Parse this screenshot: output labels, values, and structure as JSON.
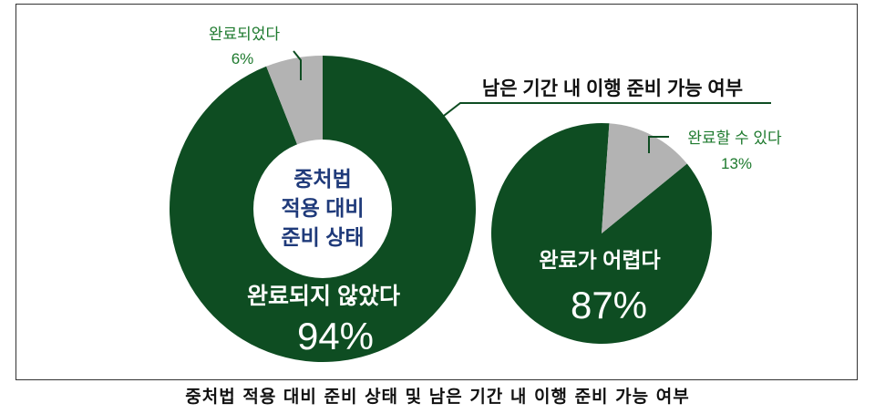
{
  "chart_data": [
    {
      "type": "donut",
      "title": "중처법 적용 대비 준비 상태",
      "series": [
        {
          "label": "완료되지 않았다",
          "value": 94,
          "value_label": "94%",
          "color": "#0e4d22"
        },
        {
          "label": "완료되었다",
          "value": 6,
          "value_label": "6%",
          "color": "#b3b3b3"
        }
      ]
    },
    {
      "type": "pie",
      "title": "남은 기간 내 이행 준비 가능 여부",
      "series": [
        {
          "label": "완료가 어렵다",
          "value": 87,
          "value_label": "87%",
          "color": "#0e4d22"
        },
        {
          "label": "완료할 수 있다",
          "value": 13,
          "value_label": "13%",
          "color": "#b3b3b3"
        }
      ]
    }
  ],
  "annotation_color": "#1e7a2e",
  "title_color": "#1f3a7a",
  "caption": "중처법 적용 대비 준비 상태 및 남은 기간 내 이행 준비 가능 여부"
}
